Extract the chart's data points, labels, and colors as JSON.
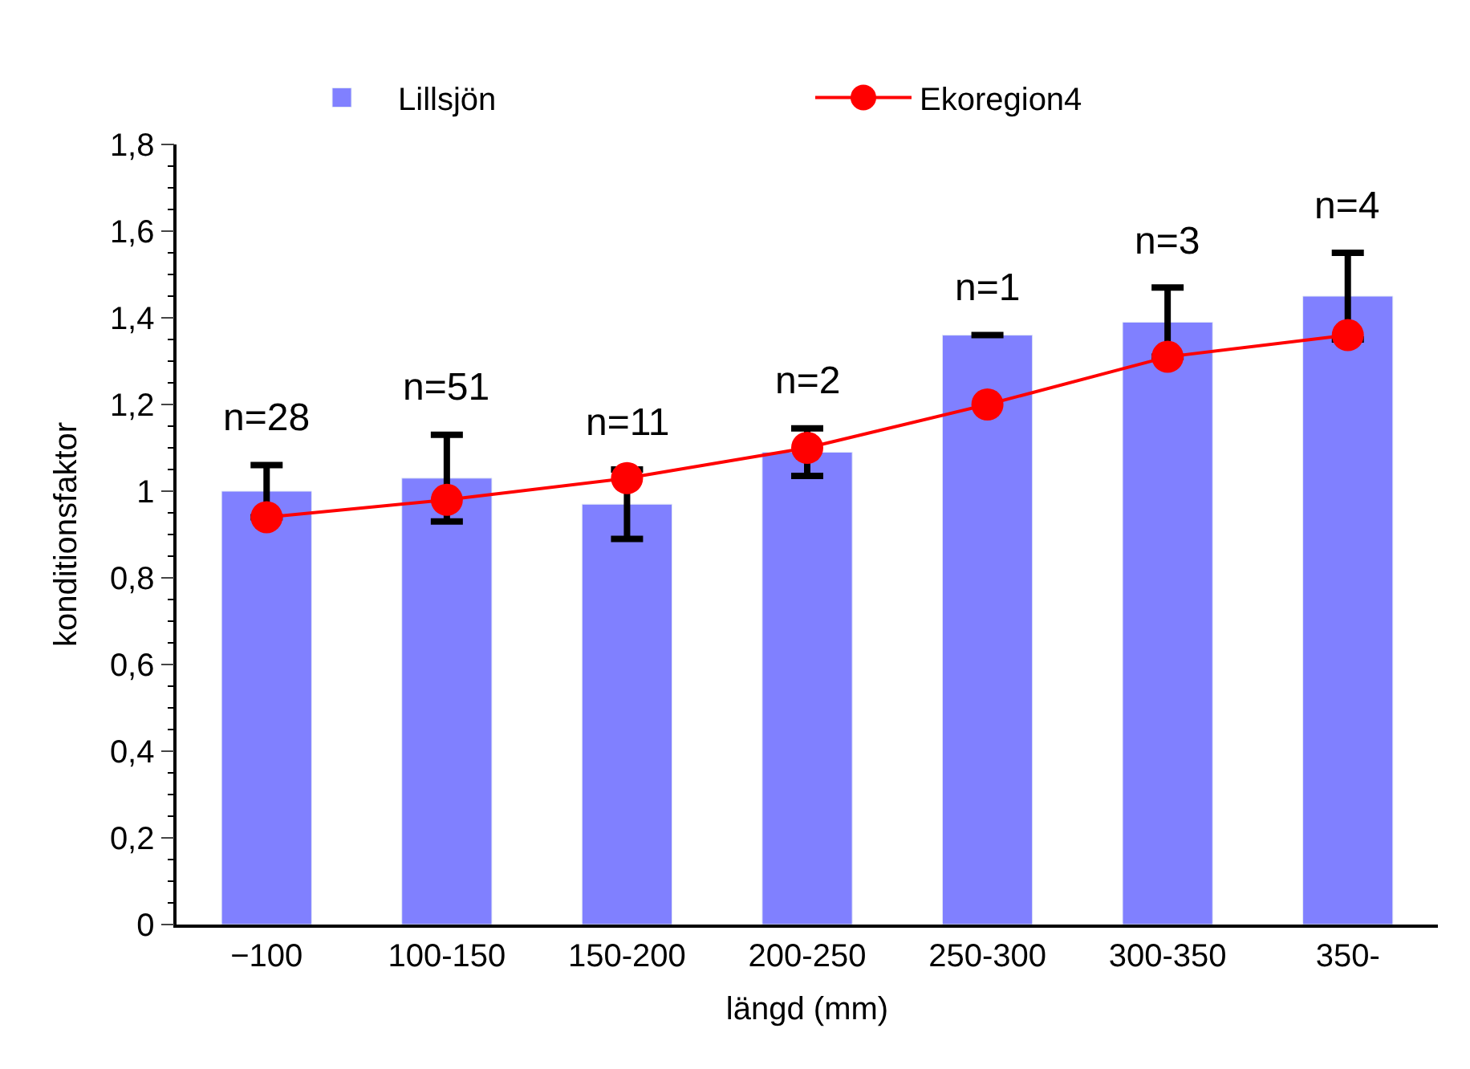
{
  "chart_data": {
    "type": "bar",
    "xlabel": "längd (mm)",
    "ylabel": "konditionsfaktor",
    "categories": [
      "−100",
      "100-150",
      "150-200",
      "200-250",
      "250-300",
      "300-350",
      "350-"
    ],
    "series": [
      {
        "name": "Lillsjön",
        "color": "#8080ff",
        "values": [
          1.0,
          1.03,
          0.97,
          1.09,
          1.36,
          1.39,
          1.45
        ],
        "errors": [
          0.06,
          0.1,
          0.08,
          0.055,
          0,
          0.08,
          0.1
        ]
      },
      {
        "name": "Ekoregion4",
        "type": "line",
        "color": "#ff0000",
        "marker": "circle",
        "line_style": "solid",
        "values": [
          0.94,
          0.98,
          1.03,
          1.1,
          1.2,
          1.31,
          1.36
        ]
      }
    ],
    "ylim": [
      0,
      1.8
    ],
    "yticks": [
      0,
      {
        "value": 0.2,
        "label": "0,2"
      },
      {
        "value": 0.4,
        "label": "0,4"
      },
      {
        "value": 0.6,
        "label": "0,6"
      },
      {
        "value": 0.8,
        "label": "0,8"
      },
      1,
      {
        "value": 1.2,
        "label": "1,2"
      },
      {
        "value": 1.4,
        "label": "1,4"
      },
      {
        "value": 1.6,
        "label": "1,6"
      },
      {
        "value": 1.8,
        "label": "1,8"
      }
    ],
    "annotations": [
      "n=28",
      "n=51",
      "n=11",
      "n=2",
      "n=1",
      "n=3",
      "n=4"
    ],
    "legend": "top"
  }
}
